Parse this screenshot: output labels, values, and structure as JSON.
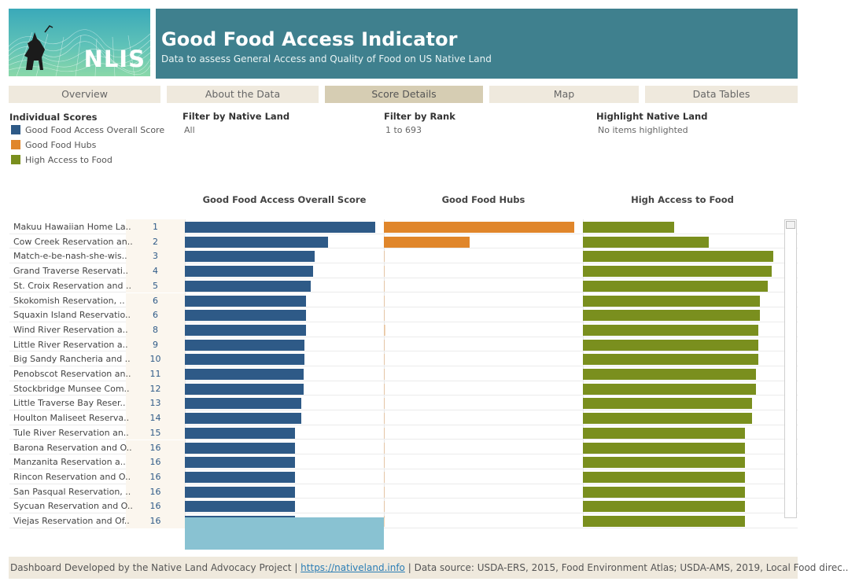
{
  "header": {
    "title": "Good Food Access Indicator",
    "subtitle": "Data to assess General Access and Quality of Food on US Native Land",
    "logo_text": "NLIS"
  },
  "tabs": [
    {
      "label": "Overview",
      "active": false
    },
    {
      "label": "About the Data",
      "active": false
    },
    {
      "label": "Score Details",
      "active": true
    },
    {
      "label": "Map",
      "active": false
    },
    {
      "label": "Data Tables",
      "active": false
    }
  ],
  "legend": {
    "title": "Individual Scores",
    "items": [
      {
        "label": "Good Food Access Overall Score",
        "color": "#2e5a87"
      },
      {
        "label": "Good Food Hubs",
        "color": "#e0862b"
      },
      {
        "label": "High Access to Food",
        "color": "#7a8f1e"
      }
    ]
  },
  "filters": {
    "native_land": {
      "label": "Filter by Native Land",
      "value": "All"
    },
    "rank": {
      "label": "Filter by Rank",
      "value": "1 to 693"
    },
    "highlight": {
      "label": "Highlight Native Land",
      "value": "No items highlighted"
    }
  },
  "columns": {
    "overall": "Good Food Access Overall Score",
    "hubs": "Good Food Hubs",
    "access": "High Access to Food"
  },
  "chart_data": {
    "type": "bar",
    "series": [
      {
        "name": "Good Food Access Overall Score",
        "color": "#2e5a87"
      },
      {
        "name": "Good Food Hubs",
        "color": "#e0862b"
      },
      {
        "name": "High Access to Food",
        "color": "#7a8f1e"
      }
    ],
    "rows": [
      {
        "name": "Makuu Hawaiian Home La..",
        "rank": "1",
        "overall": 1.0,
        "hubs": 1.0,
        "access": 0.48
      },
      {
        "name": "Cow Creek Reservation an..",
        "rank": "2",
        "overall": 0.75,
        "hubs": 0.45,
        "access": 0.66
      },
      {
        "name": "Match-e-be-nash-she-wis..",
        "rank": "3",
        "overall": 0.68,
        "hubs": 0.004,
        "access": 1.0
      },
      {
        "name": "Grand Traverse Reservati..",
        "rank": "4",
        "overall": 0.675,
        "hubs": 0.004,
        "access": 0.99
      },
      {
        "name": "St. Croix Reservation and ..",
        "rank": "5",
        "overall": 0.66,
        "hubs": 0.004,
        "access": 0.97
      },
      {
        "name": "Skokomish Reservation, ..",
        "rank": "6",
        "overall": 0.635,
        "hubs": 0.004,
        "access": 0.93
      },
      {
        "name": "Squaxin Island Reservatio..",
        "rank": "6",
        "overall": 0.635,
        "hubs": 0.004,
        "access": 0.93
      },
      {
        "name": "Wind River Reservation a..",
        "rank": "8",
        "overall": 0.635,
        "hubs": 0.01,
        "access": 0.92
      },
      {
        "name": "Little River Reservation a..",
        "rank": "9",
        "overall": 0.63,
        "hubs": 0.004,
        "access": 0.92
      },
      {
        "name": "Big Sandy Rancheria and ..",
        "rank": "10",
        "overall": 0.63,
        "hubs": 0.004,
        "access": 0.92
      },
      {
        "name": "Penobscot Reservation an..",
        "rank": "11",
        "overall": 0.625,
        "hubs": 0.004,
        "access": 0.91
      },
      {
        "name": "Stockbridge Munsee Com..",
        "rank": "12",
        "overall": 0.625,
        "hubs": 0.004,
        "access": 0.91
      },
      {
        "name": "Little Traverse Bay Reser..",
        "rank": "13",
        "overall": 0.61,
        "hubs": 0.004,
        "access": 0.89
      },
      {
        "name": "Houlton Maliseet Reserva..",
        "rank": "14",
        "overall": 0.61,
        "hubs": 0.004,
        "access": 0.89
      },
      {
        "name": "Tule River Reservation an..",
        "rank": "15",
        "overall": 0.58,
        "hubs": 0.004,
        "access": 0.85
      },
      {
        "name": "Barona Reservation and O..",
        "rank": "16",
        "overall": 0.58,
        "hubs": 0.004,
        "access": 0.85
      },
      {
        "name": "Manzanita Reservation a..",
        "rank": "16",
        "overall": 0.58,
        "hubs": 0.004,
        "access": 0.85
      },
      {
        "name": "Rincon Reservation and O..",
        "rank": "16",
        "overall": 0.58,
        "hubs": 0.004,
        "access": 0.85
      },
      {
        "name": "San Pasqual Reservation, ..",
        "rank": "16",
        "overall": 0.58,
        "hubs": 0.004,
        "access": 0.85
      },
      {
        "name": "Sycuan Reservation and O..",
        "rank": "16",
        "overall": 0.58,
        "hubs": 0.004,
        "access": 0.85
      },
      {
        "name": "Viejas Reservation and Of..",
        "rank": "16",
        "overall": 0.58,
        "hubs": 0.004,
        "access": 0.85
      }
    ]
  },
  "footer": {
    "prefix": "Dashboard Developed by the Native Land Advocacy Project | ",
    "link": "https://nativeland.info",
    "suffix": " | Data source: USDA-ERS, 2015, Food Environment Atlas; USDA-AMS, 2019, Local Food direc.."
  }
}
